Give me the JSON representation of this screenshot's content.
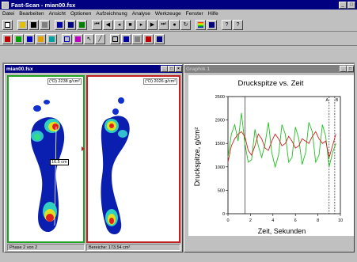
{
  "app": {
    "title": "Fast-Scan - mian00.fsx"
  },
  "menu": [
    "Datei",
    "Bearbeiten",
    "Ansicht",
    "Optionen",
    "Aufzeichnung",
    "Analyse",
    "Werkzeuge",
    "Fenster",
    "Hilfe"
  ],
  "scan_window": {
    "title": "mian00.fsx",
    "left_readout": "(°D) 2238 g/cm²",
    "right_readout": "(°D) 2026 g/cm²",
    "distance_label": "16.5 cm",
    "status_phase": "Phase 2 von 2",
    "status_area": "Bereiche: 173.54 cm²"
  },
  "graph_window": {
    "title": "Graphik 1",
    "chart_title": "Druckspitze vs. Zeit",
    "ylabel": "Druckspitze, g/cm²",
    "xlabel": "Zeit, Sekunden",
    "marker_a": "A",
    "marker_b": "B"
  },
  "chart_data": {
    "type": "line",
    "title": "Druckspitze vs. Zeit",
    "xlabel": "Zeit, Sekunden",
    "ylabel": "Druckspitze, g/cm²",
    "xlim": [
      0,
      10
    ],
    "ylim": [
      0,
      2500
    ],
    "xticks": [
      "0",
      "2",
      "4",
      "6",
      "8",
      "10"
    ],
    "yticks": [
      "0",
      "500",
      "1000",
      "1500",
      "2000",
      "2500"
    ],
    "grid": false,
    "vlines": [
      1.5,
      9.0,
      9.5
    ],
    "series": [
      {
        "color": "#20c020",
        "x": [
          0.0,
          0.3,
          0.6,
          0.9,
          1.2,
          1.5,
          1.8,
          2.1,
          2.4,
          2.7,
          3.0,
          3.3,
          3.6,
          3.9,
          4.2,
          4.5,
          4.8,
          5.1,
          5.4,
          5.7,
          6.0,
          6.3,
          6.6,
          6.9,
          7.2,
          7.5,
          7.8,
          8.1,
          8.4,
          8.7,
          9.0,
          9.3,
          9.6
        ],
        "y": [
          1200,
          1700,
          1900,
          1550,
          2150,
          1500,
          1100,
          1150,
          1800,
          1450,
          1200,
          1500,
          1950,
          1300,
          1000,
          1250,
          1900,
          1700,
          1100,
          1200,
          1850,
          1600,
          1050,
          1300,
          1950,
          1750,
          1100,
          1250,
          1900,
          1650,
          1000,
          1300,
          1500
        ]
      },
      {
        "color": "#d02020",
        "x": [
          0.0,
          0.3,
          0.6,
          0.9,
          1.2,
          1.5,
          1.8,
          2.1,
          2.4,
          2.7,
          3.0,
          3.3,
          3.6,
          3.9,
          4.2,
          4.5,
          4.8,
          5.1,
          5.4,
          5.7,
          6.0,
          6.3,
          6.6,
          6.9,
          7.2,
          7.5,
          7.8,
          8.1,
          8.4,
          8.7,
          9.0,
          9.3,
          9.6
        ],
        "y": [
          1100,
          1450,
          1600,
          1700,
          1750,
          1650,
          1350,
          1250,
          1450,
          1700,
          1600,
          1400,
          1350,
          1550,
          1700,
          1600,
          1450,
          1500,
          1650,
          1550,
          1400,
          1450,
          1600,
          1550,
          1500,
          1650,
          1750,
          1600,
          1500,
          1550,
          1200,
          1450,
          1700
        ]
      }
    ]
  }
}
